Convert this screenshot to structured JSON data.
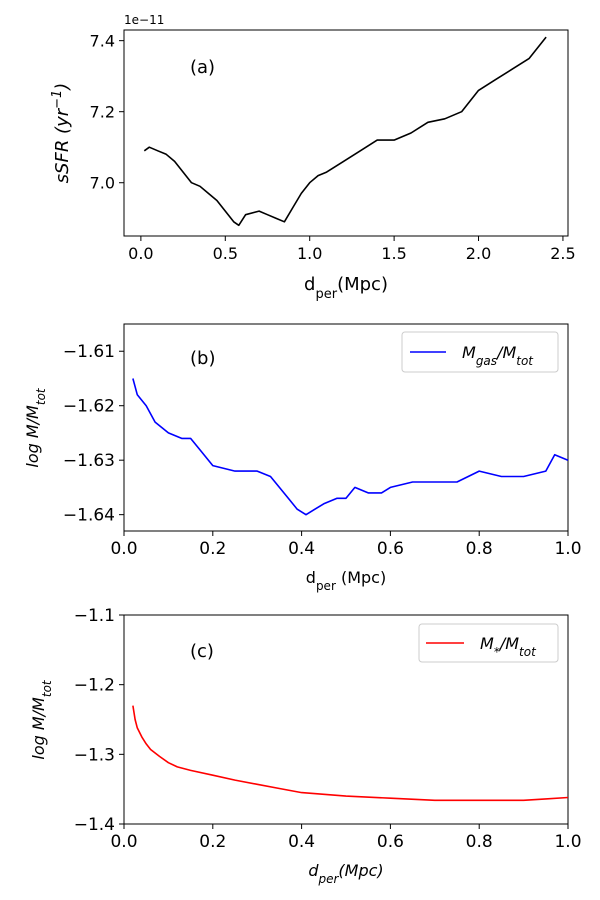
{
  "chart_data": [
    {
      "type": "line",
      "panel_label": "(a)",
      "xlabel": "d",
      "xlabel_sub": "per",
      "xlabel_unit": "(Mpc)",
      "ylabel": "sSFR (yr",
      "ylabel_sup": "−1",
      "ylabel_close": ")",
      "y_offset_label": "1e−11",
      "xlim": [
        -0.1,
        2.53
      ],
      "ylim": [
        6.85,
        7.43
      ],
      "xticks": [
        0.0,
        0.5,
        1.0,
        1.5,
        2.0,
        2.5
      ],
      "xtick_labels": [
        "0.0",
        "0.5",
        "1.0",
        "1.5",
        "2.0",
        "2.5"
      ],
      "yticks": [
        7.0,
        7.2,
        7.4
      ],
      "ytick_labels": [
        "7.0",
        "7.2",
        "7.4"
      ],
      "series": [
        {
          "color": "#000000",
          "x": [
            0.02,
            0.05,
            0.1,
            0.15,
            0.2,
            0.25,
            0.3,
            0.35,
            0.4,
            0.45,
            0.5,
            0.55,
            0.58,
            0.62,
            0.7,
            0.75,
            0.8,
            0.85,
            0.9,
            0.95,
            1.0,
            1.05,
            1.1,
            1.2,
            1.3,
            1.4,
            1.5,
            1.6,
            1.7,
            1.8,
            1.9,
            2.0,
            2.1,
            2.2,
            2.3,
            2.4
          ],
          "y": [
            7.09,
            7.1,
            7.09,
            7.08,
            7.06,
            7.03,
            7.0,
            6.99,
            6.97,
            6.95,
            6.92,
            6.89,
            6.88,
            6.91,
            6.92,
            6.91,
            6.9,
            6.89,
            6.93,
            6.97,
            7.0,
            7.02,
            7.03,
            7.06,
            7.09,
            7.12,
            7.12,
            7.14,
            7.17,
            7.18,
            7.2,
            7.26,
            7.29,
            7.32,
            7.35,
            7.41
          ]
        }
      ]
    },
    {
      "type": "line",
      "panel_label": "(b)",
      "xlabel": "d",
      "xlabel_sub": "per",
      "xlabel_unit": " (Mpc)",
      "ylabel": "log M/M",
      "ylabel_sub": "tot",
      "xlim": [
        0.0,
        1.0
      ],
      "ylim": [
        -1.643,
        -1.605
      ],
      "xticks": [
        0.0,
        0.2,
        0.4,
        0.6,
        0.8,
        1.0
      ],
      "xtick_labels": [
        "0.0",
        "0.2",
        "0.4",
        "0.6",
        "0.8",
        "1.0"
      ],
      "yticks": [
        -1.61,
        -1.62,
        -1.63,
        -1.64
      ],
      "ytick_labels": [
        "−1.61",
        "−1.62",
        "−1.63",
        "−1.64"
      ],
      "legend": {
        "placement": "top-right",
        "text": "M",
        "text_sub": "gas",
        "text_mid": "/M",
        "text_sub2": "tot"
      },
      "series": [
        {
          "name": "Mgas/Mtot",
          "color": "#0000ff",
          "x": [
            0.02,
            0.03,
            0.05,
            0.07,
            0.1,
            0.13,
            0.15,
            0.17,
            0.2,
            0.25,
            0.3,
            0.33,
            0.35,
            0.37,
            0.39,
            0.41,
            0.43,
            0.45,
            0.48,
            0.5,
            0.52,
            0.55,
            0.58,
            0.6,
            0.65,
            0.7,
            0.75,
            0.8,
            0.85,
            0.9,
            0.95,
            0.97,
            1.0
          ],
          "y": [
            -1.615,
            -1.618,
            -1.62,
            -1.623,
            -1.625,
            -1.626,
            -1.626,
            -1.628,
            -1.631,
            -1.632,
            -1.632,
            -1.633,
            -1.635,
            -1.637,
            -1.639,
            -1.64,
            -1.639,
            -1.638,
            -1.637,
            -1.637,
            -1.635,
            -1.636,
            -1.636,
            -1.635,
            -1.634,
            -1.634,
            -1.634,
            -1.632,
            -1.633,
            -1.633,
            -1.632,
            -1.629,
            -1.63
          ]
        }
      ]
    },
    {
      "type": "line",
      "panel_label": "(c)",
      "xlabel": "d",
      "xlabel_sub": "per",
      "xlabel_unit": "(Mpc)",
      "ylabel": "log M/M",
      "ylabel_sub": "tot",
      "xlim": [
        0.0,
        1.0
      ],
      "ylim": [
        -1.4,
        -1.1
      ],
      "xticks": [
        0.0,
        0.2,
        0.4,
        0.6,
        0.8,
        1.0
      ],
      "xtick_labels": [
        "0.0",
        "0.2",
        "0.4",
        "0.6",
        "0.8",
        "1.0"
      ],
      "yticks": [
        -1.1,
        -1.2,
        -1.3,
        -1.4
      ],
      "ytick_labels": [
        "−1.1",
        "−1.2",
        "−1.3",
        "−1.4"
      ],
      "legend": {
        "placement": "top-right",
        "text": "M",
        "text_sub": "*",
        "text_mid": "/M",
        "text_sub2": "tot"
      },
      "series": [
        {
          "name": "M*/Mtot",
          "color": "#ff0000",
          "x": [
            0.02,
            0.025,
            0.03,
            0.04,
            0.05,
            0.06,
            0.08,
            0.1,
            0.12,
            0.15,
            0.2,
            0.25,
            0.3,
            0.35,
            0.4,
            0.5,
            0.6,
            0.7,
            0.8,
            0.9,
            0.95,
            1.0
          ],
          "y": [
            -1.23,
            -1.25,
            -1.262,
            -1.275,
            -1.285,
            -1.293,
            -1.303,
            -1.312,
            -1.318,
            -1.323,
            -1.33,
            -1.337,
            -1.343,
            -1.349,
            -1.355,
            -1.36,
            -1.363,
            -1.366,
            -1.366,
            -1.366,
            -1.364,
            -1.362
          ]
        }
      ]
    }
  ]
}
